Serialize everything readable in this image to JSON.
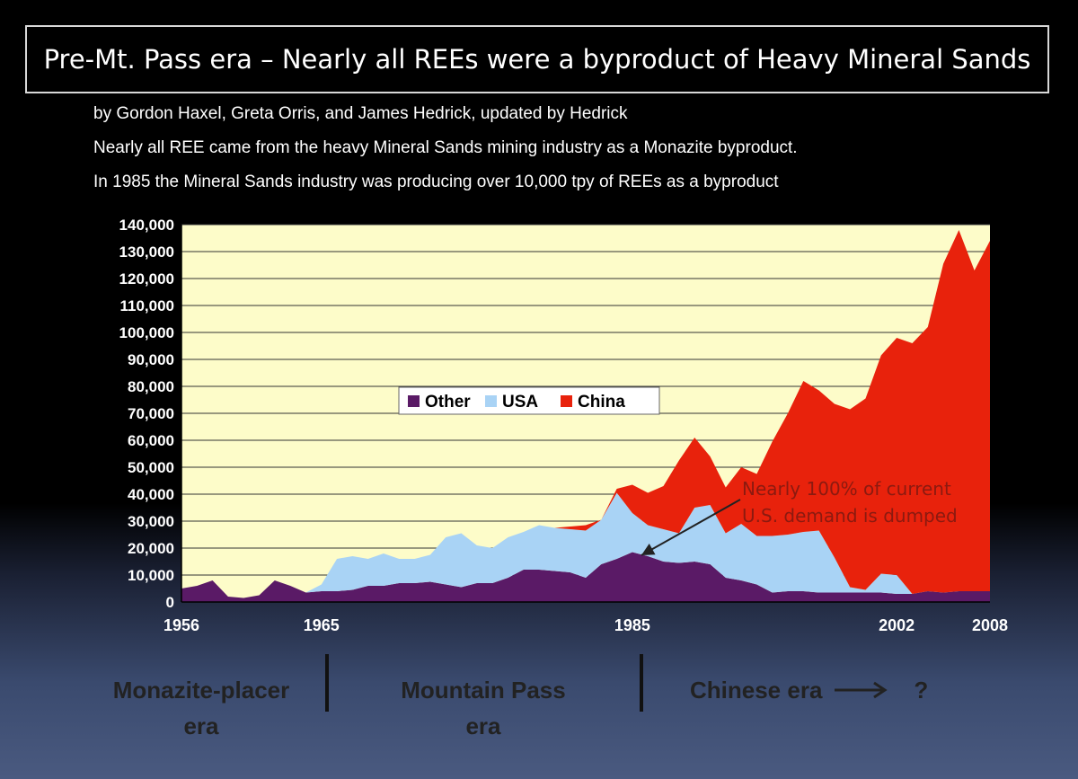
{
  "title": "Pre-Mt. Pass era – Nearly all REEs were a byproduct of Heavy Mineral Sands",
  "subtitle_lines": [
    "by Gordon Haxel, Greta Orris, and James Hedrick, updated by Hedrick",
    "Nearly all REE came from the heavy Mineral Sands mining industry as a Monazite byproduct.",
    "In 1985 the Mineral Sands industry was producing over 10,000 tpy of REEs as a byproduct"
  ],
  "eras": {
    "monazite_line1": "Monazite-placer",
    "monazite_line2": "era",
    "mountain_line1": "Mountain Pass",
    "mountain_line2": "era",
    "chinese": "Chinese era",
    "question": "?"
  },
  "colors": {
    "plot_bg": "#fdfcc9",
    "other": "#5a1a66",
    "usa": "#a9d3f5",
    "china": "#e8220c",
    "annotation": "#8b1a10"
  },
  "chart_data": {
    "type": "area",
    "stacked": true,
    "x": [
      1956,
      1957,
      1958,
      1959,
      1960,
      1961,
      1962,
      1963,
      1964,
      1965,
      1966,
      1967,
      1968,
      1969,
      1970,
      1971,
      1972,
      1973,
      1974,
      1975,
      1976,
      1977,
      1978,
      1979,
      1980,
      1981,
      1982,
      1983,
      1984,
      1985,
      1986,
      1987,
      1988,
      1989,
      1990,
      1991,
      1992,
      1993,
      1994,
      1995,
      1996,
      1997,
      1998,
      1999,
      2000,
      2001,
      2002,
      2003,
      2004,
      2005,
      2006,
      2007,
      2008
    ],
    "series": [
      {
        "name": "Other",
        "values": [
          5000,
          6000,
          8000,
          2000,
          1500,
          2500,
          8000,
          6000,
          3500,
          4000,
          4000,
          4500,
          6000,
          6000,
          7000,
          7000,
          7500,
          6500,
          5500,
          7000,
          7000,
          9000,
          12000,
          12000,
          11500,
          11000,
          9000,
          14000,
          16000,
          18500,
          17000,
          15000,
          14500,
          15000,
          14000,
          9000,
          8000,
          6500,
          3500,
          4000,
          4000,
          3500,
          3500,
          3500,
          3500,
          3500,
          3000,
          3000,
          4000,
          3500,
          4000,
          4000,
          4000
        ]
      },
      {
        "name": "USA",
        "values": [
          0,
          0,
          0,
          0,
          0,
          0,
          0,
          0,
          0,
          2500,
          12000,
          12500,
          10000,
          12000,
          9000,
          9000,
          10000,
          17500,
          20000,
          14000,
          13000,
          15000,
          14000,
          16500,
          16000,
          16000,
          17500,
          16500,
          24500,
          14500,
          11500,
          12000,
          11000,
          20000,
          22000,
          16500,
          21000,
          18000,
          21000,
          21000,
          22000,
          23000,
          13000,
          2000,
          1000,
          7000,
          7000,
          0,
          0,
          0,
          0,
          0,
          0
        ]
      },
      {
        "name": "China",
        "values": [
          0,
          0,
          0,
          0,
          0,
          0,
          0,
          0,
          0,
          0,
          0,
          0,
          0,
          0,
          0,
          0,
          0,
          0,
          0,
          0,
          0,
          0,
          0,
          0,
          0,
          1000,
          2000,
          0,
          1500,
          10500,
          12000,
          16000,
          27000,
          26000,
          18000,
          17000,
          21000,
          23000,
          35000,
          45000,
          56000,
          52000,
          57000,
          66000,
          71000,
          81000,
          88000,
          93000,
          98000,
          122000,
          134000,
          119000,
          130000
        ]
      }
    ],
    "ylim": [
      0,
      140000
    ],
    "yticks": [
      "140,000",
      "130,000",
      "120,000",
      "110,000",
      "100,000",
      "90,000",
      "80,000",
      "70,000",
      "60,000",
      "50,000",
      "40,000",
      "30,000",
      "20,000",
      "10,000",
      "0"
    ],
    "xtick_labels": [
      "1956",
      "1965",
      "1985",
      "2002",
      "2008"
    ],
    "legend": [
      "Other",
      "USA",
      "China"
    ],
    "legend_position": "top-center",
    "grid": "horizontal",
    "annotation": {
      "line1": "Nearly 100% of current",
      "line2": "U.S. demand is dumped",
      "points_to_year": 1985
    }
  }
}
